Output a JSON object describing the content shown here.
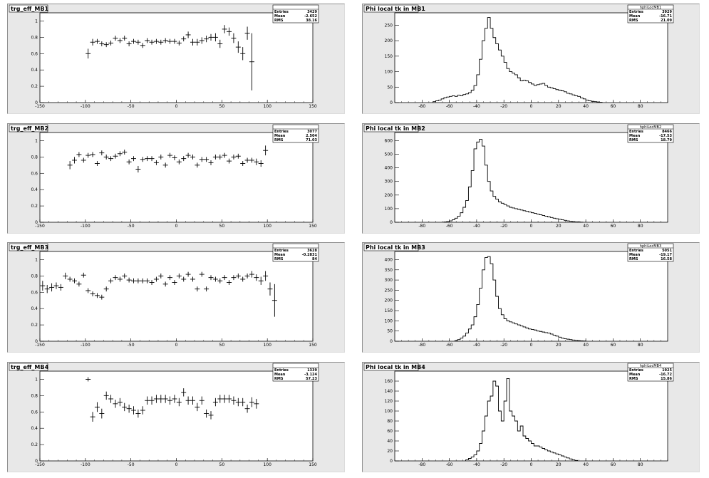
{
  "chart_data": [
    {
      "type": "scatter",
      "title": "trg_eff_MB1",
      "xlim": [
        -150,
        150
      ],
      "ylim": [
        0,
        1.1
      ],
      "xticks": [
        "-150",
        "-100",
        "-50",
        "0",
        "50",
        "100",
        "150"
      ],
      "yticks": [
        "0",
        "0.2",
        "0.4",
        "0.6",
        "0.8",
        "1"
      ],
      "stats": {
        "name": "",
        "entries": "3429",
        "mean": "-2.652",
        "rms": "38.16"
      },
      "stats_labels": {
        "entries": "Entries",
        "mean": "Mean",
        "rms": "RMS"
      },
      "x": [
        -97,
        -92,
        -87,
        -82,
        -77,
        -72,
        -67,
        -62,
        -57,
        -52,
        -47,
        -42,
        -37,
        -32,
        -27,
        -22,
        -17,
        -12,
        -7,
        -2,
        3,
        8,
        13,
        18,
        23,
        28,
        33,
        38,
        43,
        48,
        53,
        58,
        63,
        68,
        73,
        78,
        83,
        88,
        93
      ],
      "y": [
        0.6,
        0.74,
        0.75,
        0.72,
        0.71,
        0.73,
        0.79,
        0.76,
        0.79,
        0.72,
        0.75,
        0.74,
        0.7,
        0.76,
        0.74,
        0.75,
        0.74,
        0.76,
        0.75,
        0.75,
        0.73,
        0.78,
        0.83,
        0.74,
        0.74,
        0.76,
        0.78,
        0.8,
        0.8,
        0.72,
        0.9,
        0.87,
        0.79,
        0.68,
        0.6,
        0.85,
        0.5,
        0.0,
        0.0
      ],
      "yerr": [
        0.06,
        0.04,
        0.03,
        0.03,
        0.03,
        0.03,
        0.03,
        0.03,
        0.03,
        0.03,
        0.03,
        0.03,
        0.03,
        0.03,
        0.03,
        0.03,
        0.03,
        0.03,
        0.03,
        0.03,
        0.03,
        0.03,
        0.04,
        0.04,
        0.04,
        0.04,
        0.04,
        0.04,
        0.05,
        0.05,
        0.05,
        0.05,
        0.06,
        0.07,
        0.08,
        0.08,
        0.35,
        0,
        0
      ]
    },
    {
      "type": "histogram",
      "title": "Phi local tk in MB1",
      "xlim": [
        -100,
        100
      ],
      "ylim": [
        0,
        290
      ],
      "xticks": [
        "-80",
        "-60",
        "-40",
        "-20",
        "0",
        "20",
        "40",
        "60",
        "80"
      ],
      "yticks": [
        "0",
        "50",
        "100",
        "150",
        "200",
        "250"
      ],
      "stats": {
        "name": "hphiLocMB1",
        "entries": "3929",
        "mean": "-16.71",
        "rms": "21.09"
      },
      "stats_labels": {
        "entries": "Entries",
        "mean": "Mean",
        "rms": "RMS"
      },
      "bin_start": -72,
      "bin_width": 2,
      "values": [
        3,
        6,
        8,
        12,
        16,
        18,
        20,
        22,
        20,
        24,
        22,
        26,
        28,
        32,
        40,
        55,
        90,
        140,
        200,
        240,
        275,
        240,
        210,
        190,
        170,
        150,
        130,
        110,
        100,
        95,
        90,
        80,
        70,
        72,
        70,
        65,
        60,
        55,
        58,
        60,
        62,
        55,
        50,
        48,
        45,
        42,
        40,
        38,
        35,
        30,
        28,
        25,
        22,
        20,
        15,
        12,
        8,
        6,
        4,
        3,
        2,
        1
      ]
    },
    {
      "type": "scatter",
      "title": "trg_eff_MB2",
      "xlim": [
        -150,
        150
      ],
      "ylim": [
        0,
        1.1
      ],
      "xticks": [
        "-150",
        "-100",
        "-50",
        "0",
        "50",
        "100",
        "150"
      ],
      "yticks": [
        "0",
        "0.2",
        "0.4",
        "0.6",
        "0.8",
        "1"
      ],
      "stats": {
        "name": "",
        "entries": "3077",
        "mean": "2.504",
        "rms": "71.03"
      },
      "stats_labels": {
        "entries": "Entries",
        "mean": "Mean",
        "rms": "RMS"
      },
      "x": [
        -117,
        -112,
        -107,
        -102,
        -97,
        -92,
        -87,
        -82,
        -77,
        -72,
        -67,
        -62,
        -57,
        -52,
        -47,
        -42,
        -37,
        -32,
        -27,
        -22,
        -17,
        -12,
        -7,
        -2,
        3,
        8,
        13,
        18,
        23,
        28,
        33,
        38,
        43,
        48,
        53,
        58,
        63,
        68,
        73,
        78,
        83,
        88,
        93,
        98,
        103,
        108,
        113,
        118,
        123
      ],
      "y": [
        0.7,
        0.76,
        0.83,
        0.76,
        0.82,
        0.83,
        0.72,
        0.85,
        0.8,
        0.78,
        0.81,
        0.84,
        0.86,
        0.74,
        0.78,
        0.65,
        0.77,
        0.78,
        0.78,
        0.73,
        0.8,
        0.7,
        0.82,
        0.79,
        0.74,
        0.78,
        0.82,
        0.8,
        0.7,
        0.77,
        0.77,
        0.73,
        0.8,
        0.8,
        0.82,
        0.75,
        0.8,
        0.81,
        0.72,
        0.76,
        0.76,
        0.74,
        0.72,
        0.88,
        0,
        0,
        0,
        0,
        0
      ],
      "yerr": [
        0.05,
        0.04,
        0.03,
        0.03,
        0.03,
        0.03,
        0.03,
        0.03,
        0.03,
        0.03,
        0.03,
        0.03,
        0.03,
        0.03,
        0.03,
        0.04,
        0.03,
        0.03,
        0.03,
        0.03,
        0.03,
        0.03,
        0.03,
        0.03,
        0.03,
        0.03,
        0.03,
        0.03,
        0.03,
        0.03,
        0.03,
        0.03,
        0.03,
        0.03,
        0.03,
        0.03,
        0.03,
        0.03,
        0.03,
        0.03,
        0.03,
        0.04,
        0.04,
        0.06,
        0,
        0,
        0,
        0,
        0
      ]
    },
    {
      "type": "histogram",
      "title": "Phi local tk in MB2",
      "xlim": [
        -100,
        100
      ],
      "ylim": [
        0,
        660
      ],
      "xticks": [
        "-80",
        "-60",
        "-40",
        "-20",
        "0",
        "20",
        "40",
        "60",
        "80"
      ],
      "yticks": [
        "0",
        "100",
        "200",
        "300",
        "400",
        "500",
        "600"
      ],
      "stats": {
        "name": "hphiLocMB2",
        "entries": "8466",
        "mean": "-17.53",
        "rms": "18.79"
      },
      "stats_labels": {
        "entries": "Entries",
        "mean": "Mean",
        "rms": "RMS"
      },
      "bin_start": -64,
      "bin_width": 2,
      "values": [
        2,
        5,
        10,
        18,
        30,
        45,
        70,
        110,
        160,
        260,
        380,
        540,
        590,
        610,
        560,
        420,
        300,
        230,
        190,
        170,
        150,
        140,
        130,
        120,
        110,
        105,
        100,
        95,
        90,
        85,
        80,
        75,
        70,
        65,
        60,
        55,
        50,
        45,
        40,
        35,
        30,
        26,
        22,
        18,
        14,
        10,
        7,
        5,
        3,
        2,
        1
      ]
    },
    {
      "type": "scatter",
      "title": "trg_eff_MB3",
      "xlim": [
        -150,
        150
      ],
      "ylim": [
        0,
        1.1
      ],
      "xticks": [
        "-150",
        "-100",
        "-50",
        "0",
        "50",
        "100",
        "150"
      ],
      "yticks": [
        "0",
        "0.2",
        "0.4",
        "0.6",
        "0.8",
        "1"
      ],
      "stats": {
        "name": "",
        "entries": "3628",
        "mean": "-0.2831",
        "rms": "84"
      },
      "stats_labels": {
        "entries": "Entries",
        "mean": "Mean",
        "rms": "RMS"
      },
      "x": [
        -147,
        -142,
        -137,
        -132,
        -127,
        -122,
        -117,
        -112,
        -107,
        -102,
        -97,
        -92,
        -87,
        -82,
        -77,
        -72,
        -67,
        -62,
        -57,
        -52,
        -47,
        -42,
        -37,
        -32,
        -27,
        -22,
        -17,
        -12,
        -7,
        -2,
        3,
        8,
        13,
        18,
        23,
        28,
        33,
        38,
        43,
        48,
        53,
        58,
        63,
        68,
        73,
        78,
        83,
        88,
        93,
        98,
        103,
        108,
        113,
        118,
        123,
        128,
        133,
        138,
        143
      ],
      "y": [
        0.68,
        0.64,
        0.66,
        0.68,
        0.66,
        0.8,
        0.76,
        0.74,
        0.7,
        0.81,
        0.62,
        0.58,
        0.56,
        0.54,
        0.64,
        0.74,
        0.78,
        0.76,
        0.8,
        0.75,
        0.74,
        0.74,
        0.74,
        0.74,
        0.72,
        0.76,
        0.8,
        0.7,
        0.78,
        0.72,
        0.8,
        0.76,
        0.82,
        0.76,
        0.64,
        0.82,
        0.64,
        0.78,
        0.76,
        0.74,
        0.78,
        0.72,
        0.78,
        0.8,
        0.76,
        0.8,
        0.82,
        0.78,
        0.74,
        0.8,
        0.64,
        0.5,
        0,
        0,
        0,
        0,
        0,
        0,
        0
      ],
      "yerr": [
        0.06,
        0.05,
        0.05,
        0.04,
        0.04,
        0.04,
        0.03,
        0.03,
        0.03,
        0.03,
        0.03,
        0.03,
        0.03,
        0.03,
        0.03,
        0.03,
        0.03,
        0.03,
        0.03,
        0.03,
        0.03,
        0.03,
        0.03,
        0.03,
        0.03,
        0.03,
        0.03,
        0.03,
        0.03,
        0.03,
        0.03,
        0.03,
        0.03,
        0.03,
        0.03,
        0.03,
        0.03,
        0.03,
        0.03,
        0.03,
        0.03,
        0.03,
        0.03,
        0.03,
        0.03,
        0.03,
        0.04,
        0.04,
        0.05,
        0.06,
        0.08,
        0.2,
        0,
        0,
        0,
        0,
        0,
        0,
        0
      ]
    },
    {
      "type": "histogram",
      "title": "Phi local tk in MB3",
      "xlim": [
        -100,
        100
      ],
      "ylim": [
        0,
        440
      ],
      "xticks": [
        "-80",
        "-60",
        "-40",
        "-20",
        "0",
        "20",
        "40",
        "60",
        "80"
      ],
      "yticks": [
        "0",
        "50",
        "100",
        "150",
        "200",
        "250",
        "300",
        "350",
        "400"
      ],
      "stats": {
        "name": "hphiLocMB3",
        "entries": "5051",
        "mean": "-19.17",
        "rms": "16.58"
      },
      "stats_labels": {
        "entries": "Entries",
        "mean": "Mean",
        "rms": "RMS"
      },
      "bin_start": -56,
      "bin_width": 2,
      "values": [
        3,
        8,
        15,
        25,
        40,
        60,
        80,
        120,
        180,
        260,
        350,
        410,
        415,
        380,
        300,
        220,
        160,
        130,
        110,
        100,
        95,
        90,
        85,
        80,
        75,
        70,
        65,
        60,
        58,
        55,
        50,
        48,
        45,
        42,
        40,
        35,
        30,
        25,
        20,
        15,
        12,
        10,
        8,
        6,
        4,
        3,
        2,
        1
      ]
    },
    {
      "type": "scatter",
      "title": "trg_eff_MB4",
      "xlim": [
        -150,
        150
      ],
      "ylim": [
        0,
        1.1
      ],
      "xticks": [
        "-150",
        "-100",
        "-50",
        "0",
        "50",
        "100",
        "150"
      ],
      "yticks": [
        "0",
        "0.2",
        "0.4",
        "0.6",
        "0.8",
        "1"
      ],
      "stats": {
        "name": "",
        "entries": "1339",
        "mean": "-3.124",
        "rms": "57.23"
      },
      "stats_labels": {
        "entries": "Entries",
        "mean": "Mean",
        "rms": "RMS"
      },
      "x": [
        -97,
        -92,
        -87,
        -82,
        -77,
        -72,
        -67,
        -62,
        -57,
        -52,
        -47,
        -42,
        -37,
        -32,
        -27,
        -22,
        -17,
        -12,
        -7,
        -2,
        3,
        8,
        13,
        18,
        23,
        28,
        33,
        38,
        43,
        48,
        53,
        58,
        63,
        68,
        73,
        78,
        83,
        88,
        93
      ],
      "y": [
        1.0,
        0.54,
        0.66,
        0.58,
        0.8,
        0.76,
        0.7,
        0.72,
        0.66,
        0.64,
        0.62,
        0.58,
        0.62,
        0.74,
        0.74,
        0.76,
        0.76,
        0.76,
        0.74,
        0.76,
        0.72,
        0.84,
        0.74,
        0.74,
        0.66,
        0.74,
        0.58,
        0.56,
        0.72,
        0.76,
        0.76,
        0.76,
        0.74,
        0.72,
        0.72,
        0.64,
        0.72,
        0.7,
        0
      ],
      "yerr": [
        0,
        0.06,
        0.06,
        0.06,
        0.05,
        0.05,
        0.05,
        0.05,
        0.05,
        0.05,
        0.05,
        0.05,
        0.05,
        0.05,
        0.05,
        0.05,
        0.05,
        0.05,
        0.05,
        0.05,
        0.05,
        0.05,
        0.05,
        0.05,
        0.05,
        0.05,
        0.05,
        0.05,
        0.05,
        0.05,
        0.05,
        0.05,
        0.05,
        0.05,
        0.05,
        0.05,
        0.06,
        0.06,
        0
      ]
    },
    {
      "type": "histogram",
      "title": "Phi local tk in MB4",
      "xlim": [
        -100,
        100
      ],
      "ylim": [
        0,
        180
      ],
      "xticks": [
        "-80",
        "-60",
        "-40",
        "-20",
        "0",
        "20",
        "40",
        "60",
        "80"
      ],
      "yticks": [
        "0",
        "20",
        "40",
        "60",
        "80",
        "100",
        "120",
        "140",
        "160"
      ],
      "stats": {
        "name": "hphiLocMB4",
        "entries": "1925",
        "mean": "-16.72",
        "rms": "15.86"
      },
      "stats_labels": {
        "entries": "Entries",
        "mean": "Mean",
        "rms": "RMS"
      },
      "bin_start": -48,
      "bin_width": 2,
      "values": [
        2,
        5,
        8,
        12,
        20,
        35,
        60,
        90,
        120,
        130,
        160,
        150,
        100,
        80,
        120,
        165,
        100,
        90,
        80,
        60,
        70,
        50,
        45,
        40,
        35,
        30,
        30,
        28,
        25,
        22,
        20,
        18,
        16,
        14,
        12,
        10,
        8,
        6,
        4,
        2,
        1
      ]
    }
  ]
}
